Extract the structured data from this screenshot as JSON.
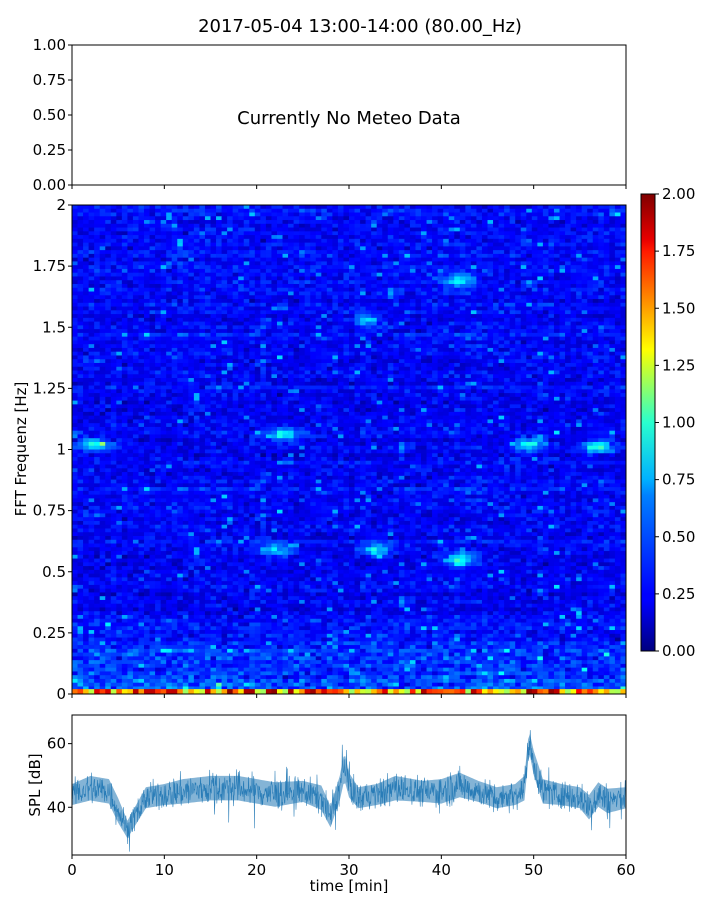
{
  "chart_data": [
    {
      "type": "line",
      "panel": "meteo",
      "title": "2017-05-04 13:00-14:00 (80.00_Hz)",
      "message": "Currently No Meteo Data",
      "ylim": [
        0,
        1
      ],
      "yticks": [
        "0.00",
        "0.25",
        "0.50",
        "0.75",
        "1.00"
      ],
      "xlim": [
        0,
        60
      ],
      "series": []
    },
    {
      "type": "heatmap",
      "panel": "spectrogram",
      "ylabel": "FFT Frequenz [Hz]",
      "xlim": [
        0,
        60
      ],
      "ylim": [
        0,
        2
      ],
      "yticks": [
        "0",
        "0.25",
        "0.5",
        "0.75",
        "1",
        "1.25",
        "1.5",
        "1.75",
        "2"
      ],
      "colormap": "jet",
      "colorbar": {
        "range": [
          0,
          2
        ],
        "ticks": [
          "0.00",
          "0.25",
          "0.50",
          "0.75",
          "1.00",
          "1.25",
          "1.50",
          "1.75",
          "2.00"
        ]
      },
      "baseline_level": 0.25,
      "highlights": [
        {
          "time": 2.5,
          "freq": 1.02,
          "value": 0.9
        },
        {
          "time": 23,
          "freq": 1.06,
          "value": 0.85
        },
        {
          "time": 32,
          "freq": 1.53,
          "value": 0.7
        },
        {
          "time": 42,
          "freq": 1.69,
          "value": 0.8
        },
        {
          "time": 42,
          "freq": 0.55,
          "value": 0.95
        },
        {
          "time": 49.5,
          "freq": 1.02,
          "value": 0.9
        },
        {
          "time": 57,
          "freq": 1.01,
          "value": 0.9
        },
        {
          "time": 22,
          "freq": 0.59,
          "value": 0.8
        },
        {
          "time": 33,
          "freq": 0.59,
          "value": 0.8
        }
      ],
      "low_freq_band": {
        "freq_max": 0.02,
        "value": 1.9
      }
    },
    {
      "type": "line",
      "panel": "spl",
      "xlabel": "time [min]",
      "ylabel": "SPL [dB]",
      "xlim": [
        0,
        60
      ],
      "ylim": [
        25,
        69
      ],
      "xticks": [
        "0",
        "10",
        "20",
        "30",
        "40",
        "50",
        "60"
      ],
      "yticks": [
        "40",
        "60"
      ],
      "color": "#1f77b4",
      "series": [
        {
          "x": [
            0,
            2,
            4,
            5,
            6,
            8,
            10,
            12,
            15,
            18,
            20,
            22,
            25,
            27,
            28,
            29,
            29.5,
            30,
            31,
            33,
            35,
            38,
            40,
            42,
            44,
            46,
            48,
            49,
            49.5,
            50,
            51,
            53,
            55,
            56,
            57,
            58,
            60
          ],
          "mean": [
            44,
            46,
            45,
            39,
            33,
            43,
            44,
            45,
            46,
            46,
            45,
            44,
            45,
            43,
            37,
            46,
            53,
            47,
            43,
            44,
            46,
            45,
            45,
            47,
            45,
            43,
            44,
            46,
            61,
            54,
            45,
            44,
            43,
            40,
            44,
            42,
            43
          ],
          "spread": [
            6,
            7,
            7,
            7,
            5,
            6,
            6,
            7,
            7,
            7,
            7,
            7,
            6,
            7,
            6,
            7,
            8,
            7,
            6,
            6,
            7,
            6,
            7,
            7,
            6,
            6,
            6,
            7,
            6,
            7,
            7,
            6,
            6,
            7,
            7,
            7,
            6
          ]
        }
      ]
    }
  ]
}
